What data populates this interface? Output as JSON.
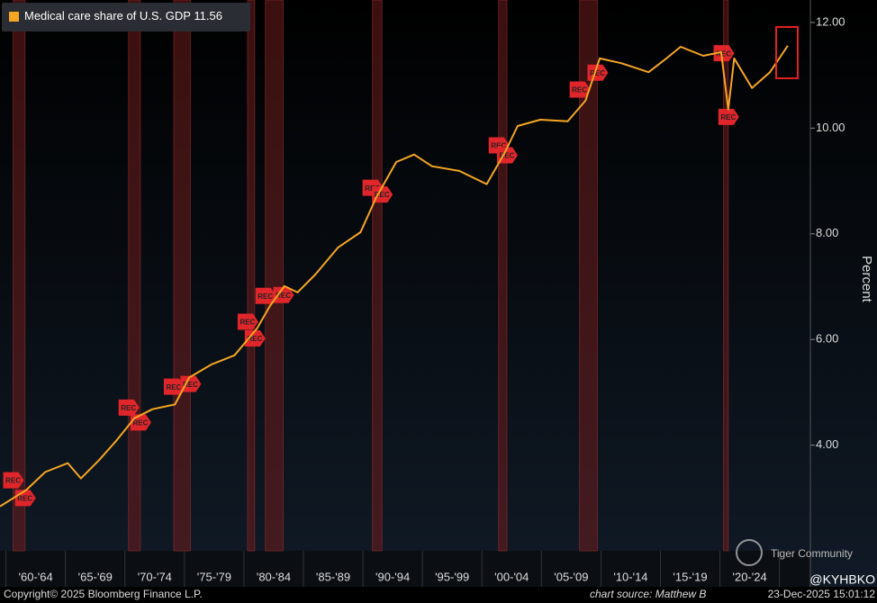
{
  "chart_data": {
    "type": "line",
    "series": [
      {
        "name": "Medical care share of U.S. GDP",
        "color": "#f5a623",
        "x": [
          1959.5,
          1961.7,
          1963.3,
          1965.2,
          1966.3,
          1967.8,
          1969.3,
          1970.8,
          1972.3,
          1974.2,
          1975.4,
          1977.3,
          1979.2,
          1981.1,
          1982.2,
          1983.4,
          1984.5,
          1986,
          1987.9,
          1989.8,
          1991.1,
          1992.8,
          1994.3,
          1995.8,
          1998.1,
          2000.4,
          2001.9,
          2003,
          2004.9,
          2007.2,
          2008.7,
          2009.9,
          2011.7,
          2014,
          2015.5,
          2016.7,
          2018.6,
          2020.1,
          2020.7,
          2021.2,
          2022.7,
          2024.2,
          2025.7
        ],
        "values": [
          2.84,
          3.15,
          3.49,
          3.66,
          3.37,
          3.71,
          4.09,
          4.51,
          4.68,
          4.77,
          5.28,
          5.53,
          5.7,
          6.21,
          6.64,
          7.01,
          6.89,
          7.23,
          7.74,
          8.03,
          8.68,
          9.36,
          9.5,
          9.28,
          9.19,
          8.94,
          9.53,
          10.04,
          10.16,
          10.13,
          10.52,
          11.32,
          11.23,
          11.06,
          11.32,
          11.54,
          11.37,
          11.44,
          10.35,
          11.32,
          10.76,
          11.06,
          11.56
        ],
        "last_value": 11.56
      }
    ],
    "categories": [
      "'60-'64",
      "'65-'69",
      "'70-'74",
      "'75-'79",
      "'80-'84",
      "'85-'89",
      "'90-'94",
      "'95-'99",
      "'00-'04",
      "'05-'09",
      "'10-'14",
      "'15-'19",
      "'20-'24"
    ],
    "xlim": [
      1959.5,
      2027.6
    ],
    "xticks": [
      1960,
      1965,
      1970,
      1975,
      1980,
      1985,
      1990,
      1995,
      2000,
      2005,
      2010,
      2015,
      2020,
      2025
    ],
    "ylim": [
      2,
      12.4
    ],
    "yticks": [
      {
        "value": 4,
        "label": "4.00"
      },
      {
        "value": 6,
        "label": "6.00"
      },
      {
        "value": 8,
        "label": "8.00"
      },
      {
        "value": 10,
        "label": "10.00"
      },
      {
        "value": 12,
        "label": "12.00"
      }
    ],
    "ylabel": "Percent",
    "recessions": [
      [
        1960.6,
        1961.6
      ],
      [
        1970.3,
        1971.3
      ],
      [
        1974.1,
        1975.5
      ],
      [
        1980.3,
        1980.9
      ],
      [
        1981.8,
        1983.3
      ],
      [
        1990.8,
        1991.6
      ],
      [
        2001.4,
        2002.1
      ],
      [
        2008.2,
        2009.7
      ],
      [
        2020.3,
        2020.7
      ]
    ],
    "recession_label": "REC"
  },
  "footer": {
    "copyright": "Copyright© 2025 Bloomberg Finance L.P.",
    "source": "chart source: Matthew B",
    "timestamp": "23-Dec-2025 15:01:12"
  },
  "watermark": {
    "brand": "Tiger Community",
    "handle": "@KYHBKO"
  }
}
